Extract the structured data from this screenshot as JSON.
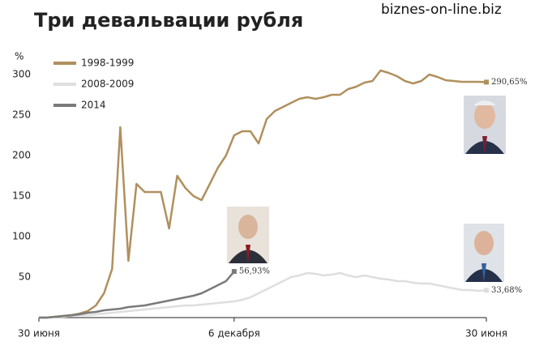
{
  "chart_data": {
    "type": "line",
    "title": "Три девальвации рубля",
    "watermark": "biznes-on-line.biz",
    "y_label": "%",
    "categories": [
      "30 июня",
      null,
      null,
      null,
      null,
      null,
      null,
      null,
      null,
      null,
      null,
      null,
      null,
      null,
      null,
      null,
      null,
      null,
      null,
      null,
      null,
      null,
      null,
      null,
      "6 декабря",
      null,
      null,
      null,
      null,
      null,
      null,
      null,
      null,
      null,
      null,
      null,
      null,
      null,
      null,
      null,
      null,
      null,
      null,
      null,
      null,
      null,
      null,
      null,
      null,
      null,
      null,
      null,
      null,
      null,
      null,
      "30 июня"
    ],
    "ylim": [
      0,
      310
    ],
    "yticks": [
      50,
      100,
      150,
      200,
      250,
      300
    ],
    "grid": false,
    "series": [
      {
        "name": "1998-1999",
        "color": "#b0905e",
        "values": [
          0,
          0,
          1,
          2,
          3,
          5,
          8,
          15,
          30,
          60,
          235,
          70,
          165,
          155,
          155,
          155,
          110,
          175,
          160,
          150,
          145,
          165,
          185,
          200,
          225,
          230,
          230,
          215,
          245,
          255,
          260,
          265,
          270,
          272,
          270,
          272,
          275,
          275,
          282,
          285,
          290,
          292,
          305,
          302,
          298,
          292,
          289,
          292,
          300,
          297,
          293,
          292,
          291,
          291,
          291,
          290.65
        ],
        "value_labels": [
          null,
          null,
          null,
          null,
          null,
          null,
          null,
          null,
          null,
          null,
          null,
          null,
          null,
          null,
          null,
          null,
          null,
          null,
          null,
          null,
          null,
          null,
          null,
          null,
          null,
          null,
          null,
          null,
          null,
          null,
          null,
          null,
          null,
          null,
          null,
          null,
          null,
          null,
          null,
          null,
          null,
          null,
          null,
          null,
          null,
          null,
          null,
          null,
          null,
          null,
          null,
          null,
          null,
          null,
          null,
          "290,65%"
        ]
      },
      {
        "name": "2008-2009",
        "color": "#dedede",
        "values": [
          0,
          0,
          1,
          1,
          2,
          3,
          3,
          4,
          5,
          6,
          7,
          8,
          9,
          10,
          11,
          12,
          13,
          14,
          15,
          15,
          16,
          17,
          18,
          19,
          20,
          22,
          25,
          30,
          35,
          40,
          45,
          50,
          52,
          55,
          54,
          52,
          53,
          55,
          52,
          50,
          52,
          50,
          48,
          47,
          45,
          45,
          43,
          42,
          42,
          40,
          38,
          36,
          34,
          34,
          33,
          33.68
        ],
        "value_labels": [
          null,
          null,
          null,
          null,
          null,
          null,
          null,
          null,
          null,
          null,
          null,
          null,
          null,
          null,
          null,
          null,
          null,
          null,
          null,
          null,
          null,
          null,
          null,
          null,
          null,
          null,
          null,
          null,
          null,
          null,
          null,
          null,
          null,
          null,
          null,
          null,
          null,
          null,
          null,
          null,
          null,
          null,
          null,
          null,
          null,
          null,
          null,
          null,
          null,
          null,
          null,
          null,
          null,
          null,
          null,
          "33,68%"
        ]
      },
      {
        "name": "2014",
        "color": "#7a7a7a",
        "values": [
          0,
          0,
          1,
          2,
          3,
          4,
          6,
          7,
          9,
          10,
          11,
          13,
          14,
          15,
          17,
          19,
          21,
          23,
          25,
          27,
          30,
          35,
          40,
          45,
          56.93,
          null,
          null,
          null,
          null,
          null,
          null,
          null,
          null,
          null,
          null,
          null,
          null,
          null,
          null,
          null,
          null,
          null,
          null,
          null,
          null,
          null,
          null,
          null,
          null,
          null,
          null,
          null,
          null,
          null,
          null,
          null
        ],
        "value_labels": [
          null,
          null,
          null,
          null,
          null,
          null,
          null,
          null,
          null,
          null,
          null,
          null,
          null,
          null,
          null,
          null,
          null,
          null,
          null,
          null,
          null,
          null,
          null,
          null,
          "56,93%",
          null,
          null,
          null,
          null,
          null,
          null,
          null,
          null,
          null,
          null,
          null,
          null,
          null,
          null,
          null,
          null,
          null,
          null,
          null,
          null,
          null,
          null,
          null,
          null,
          null,
          null,
          null,
          null,
          null,
          null,
          null
        ]
      }
    ]
  }
}
